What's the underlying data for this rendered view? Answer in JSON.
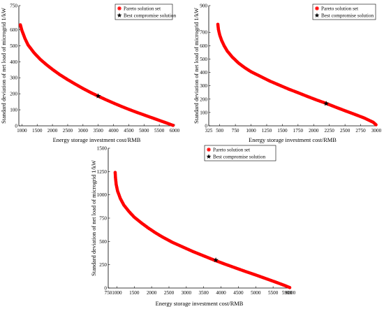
{
  "colors": {
    "pareto": "#ff0000",
    "best": "#000000",
    "axis": "#000000",
    "background": "#ffffff"
  },
  "chart_data": [
    {
      "type": "scatter",
      "title": "",
      "xlabel": "Energy storage investment cost/RMB",
      "ylabel": "Standard deviation of net load of microgrid 1/kW",
      "xlim": [
        900,
        6000
      ],
      "ylim": [
        0,
        750
      ],
      "xticks": [
        "1000",
        "1500",
        "2000",
        "2500",
        "3000",
        "3500",
        "4000",
        "4500",
        "5000",
        "5500",
        "6000"
      ],
      "yticks": [
        "0",
        "100",
        "200",
        "300",
        "400",
        "500",
        "600",
        "750"
      ],
      "ytick_values": [
        0,
        100,
        200,
        300,
        400,
        500,
        600,
        750
      ],
      "legend": {
        "position": "top-right",
        "entries": [
          "Pareto solution set",
          "Best compromise solution"
        ]
      },
      "series": [
        {
          "name": "Pareto solution set",
          "marker": "asterisk",
          "x": [
            950,
            1000,
            1100,
            1200,
            1400,
            1600,
            1800,
            2000,
            2250,
            2500,
            2750,
            3000,
            3250,
            3500,
            3750,
            4000,
            4250,
            4500,
            4750,
            5000,
            5250,
            5500,
            5750,
            5950
          ],
          "y": [
            630,
            595,
            545,
            505,
            455,
            415,
            382,
            352,
            318,
            288,
            260,
            233,
            208,
            185,
            163,
            142,
            122,
            103,
            85,
            68,
            51,
            34,
            17,
            3
          ]
        },
        {
          "name": "Best compromise solution",
          "marker": "star",
          "x": [
            3500
          ],
          "y": [
            186
          ]
        }
      ]
    },
    {
      "type": "scatter",
      "title": "",
      "xlabel": "Energy storage investment cost/RMB",
      "ylabel": "Standard deviation of net load of microgrid 1/kW",
      "xlim": [
        325,
        3000
      ],
      "ylim": [
        0,
        900
      ],
      "xticks": [
        "325",
        "500",
        "750",
        "1000",
        "1250",
        "1500",
        "1750",
        "2000",
        "2250",
        "2500",
        "2750",
        "3000"
      ],
      "xtick_values": [
        325,
        500,
        750,
        1000,
        1250,
        1500,
        1750,
        2000,
        2250,
        2500,
        2750,
        3000
      ],
      "yticks": [
        "0",
        "100",
        "200",
        "300",
        "400",
        "500",
        "600",
        "700",
        "900"
      ],
      "ytick_values": [
        0,
        100,
        200,
        300,
        400,
        500,
        600,
        700,
        900
      ],
      "legend": {
        "position": "top-right",
        "entries": [
          "Pareto solution set",
          "Best compromise solution"
        ]
      },
      "series": [
        {
          "name": "Pareto solution set",
          "marker": "asterisk",
          "x": [
            470,
            480,
            500,
            530,
            570,
            620,
            700,
            800,
            900,
            1000,
            1150,
            1300,
            1450,
            1600,
            1750,
            1900,
            2050,
            2200,
            2350,
            2500,
            2650,
            2800,
            2950,
            2995
          ],
          "y": [
            760,
            720,
            680,
            640,
            600,
            560,
            515,
            470,
            435,
            405,
            370,
            335,
            305,
            275,
            248,
            220,
            193,
            168,
            140,
            113,
            87,
            60,
            27,
            8
          ]
        },
        {
          "name": "Best compromise solution",
          "marker": "star",
          "x": [
            2200
          ],
          "y": [
            167
          ]
        }
      ]
    },
    {
      "type": "scatter",
      "title": "",
      "xlabel": "Energy storage investment cost/RMB",
      "ylabel": "Standard deviation of net load of microgrid 1/kW",
      "xlim": [
        750,
        6000
      ],
      "ylim": [
        0,
        1500
      ],
      "xticks": [
        "750",
        "1000",
        "1500",
        "2000",
        "2500",
        "3000",
        "3500",
        "4000",
        "4500",
        "5000",
        "5500",
        "5900",
        "6000"
      ],
      "xtick_values": [
        750,
        1000,
        1500,
        2000,
        2500,
        3000,
        3500,
        4000,
        4500,
        5000,
        5500,
        5900,
        6000
      ],
      "yticks": [
        "0",
        "250",
        "500",
        "750",
        "1000",
        "1250",
        "1500"
      ],
      "ytick_values": [
        0,
        250,
        500,
        750,
        1000,
        1250,
        1500
      ],
      "legend": {
        "position": "top-left",
        "entries": [
          "Pareto solution set",
          "Best compromise solution"
        ]
      },
      "series": [
        {
          "name": "Pareto solution set",
          "marker": "asterisk",
          "x": [
            950,
            960,
            980,
            1020,
            1100,
            1200,
            1350,
            1500,
            1700,
            1900,
            2100,
            2300,
            2600,
            2900,
            3200,
            3500,
            3800,
            4100,
            4400,
            4700,
            5000,
            5300,
            5600,
            5850,
            5980
          ],
          "y": [
            1240,
            1180,
            1110,
            1040,
            960,
            890,
            820,
            760,
            700,
            645,
            595,
            550,
            490,
            440,
            390,
            345,
            300,
            258,
            218,
            178,
            140,
            100,
            60,
            25,
            5
          ]
        },
        {
          "name": "Best compromise solution",
          "marker": "star",
          "x": [
            3850
          ],
          "y": [
            300
          ]
        }
      ]
    }
  ]
}
